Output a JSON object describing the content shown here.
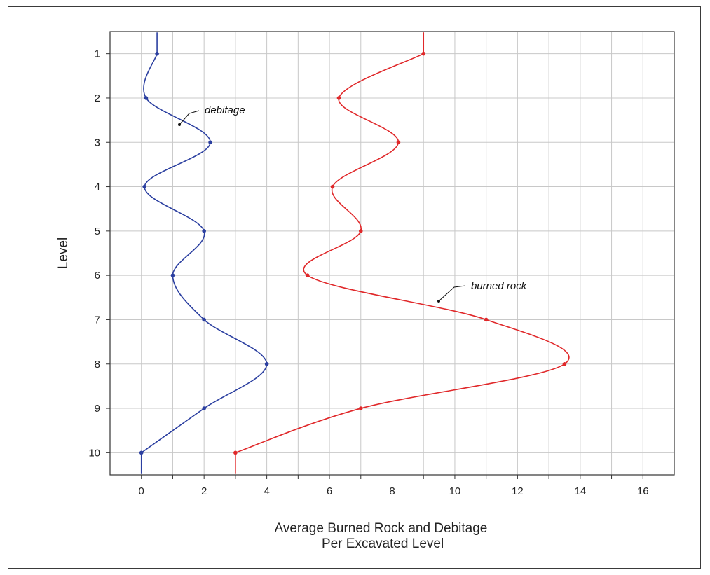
{
  "chart_data": {
    "type": "line",
    "orientation": "vertical-profile",
    "title": "",
    "xlabel": [
      "Average Burned Rock and Debitage",
      "Per Excavated Level"
    ],
    "ylabel": "Level",
    "x_range": [
      -1,
      17
    ],
    "y_range": [
      0.5,
      10.5
    ],
    "y_inverted": true,
    "x_ticks": [
      0,
      2,
      4,
      6,
      8,
      10,
      12,
      14,
      16
    ],
    "y_ticks": [
      1,
      2,
      3,
      4,
      5,
      6,
      7,
      8,
      9,
      10
    ],
    "grid": true,
    "colors": {
      "debitage": "#2b3fa0",
      "burned_rock": "#e0282a",
      "grid": "#c8c8c8"
    },
    "series": [
      {
        "name": "debitage",
        "level": [
          1,
          2,
          3,
          4,
          5,
          6,
          7,
          8,
          9,
          10
        ],
        "value": [
          0.5,
          0.15,
          2.2,
          0.1,
          2.0,
          1.0,
          2.0,
          4.0,
          2.0,
          0.0
        ]
      },
      {
        "name": "burned rock",
        "level": [
          1,
          2,
          3,
          4,
          5,
          6,
          7,
          8,
          9,
          10
        ],
        "value": [
          9.0,
          6.3,
          8.2,
          6.1,
          7.0,
          5.3,
          11.0,
          13.5,
          7.0,
          3.0
        ]
      }
    ],
    "annotations": [
      {
        "text": "debitage",
        "series": "debitage"
      },
      {
        "text": "burned rock",
        "series": "burned rock"
      }
    ]
  }
}
